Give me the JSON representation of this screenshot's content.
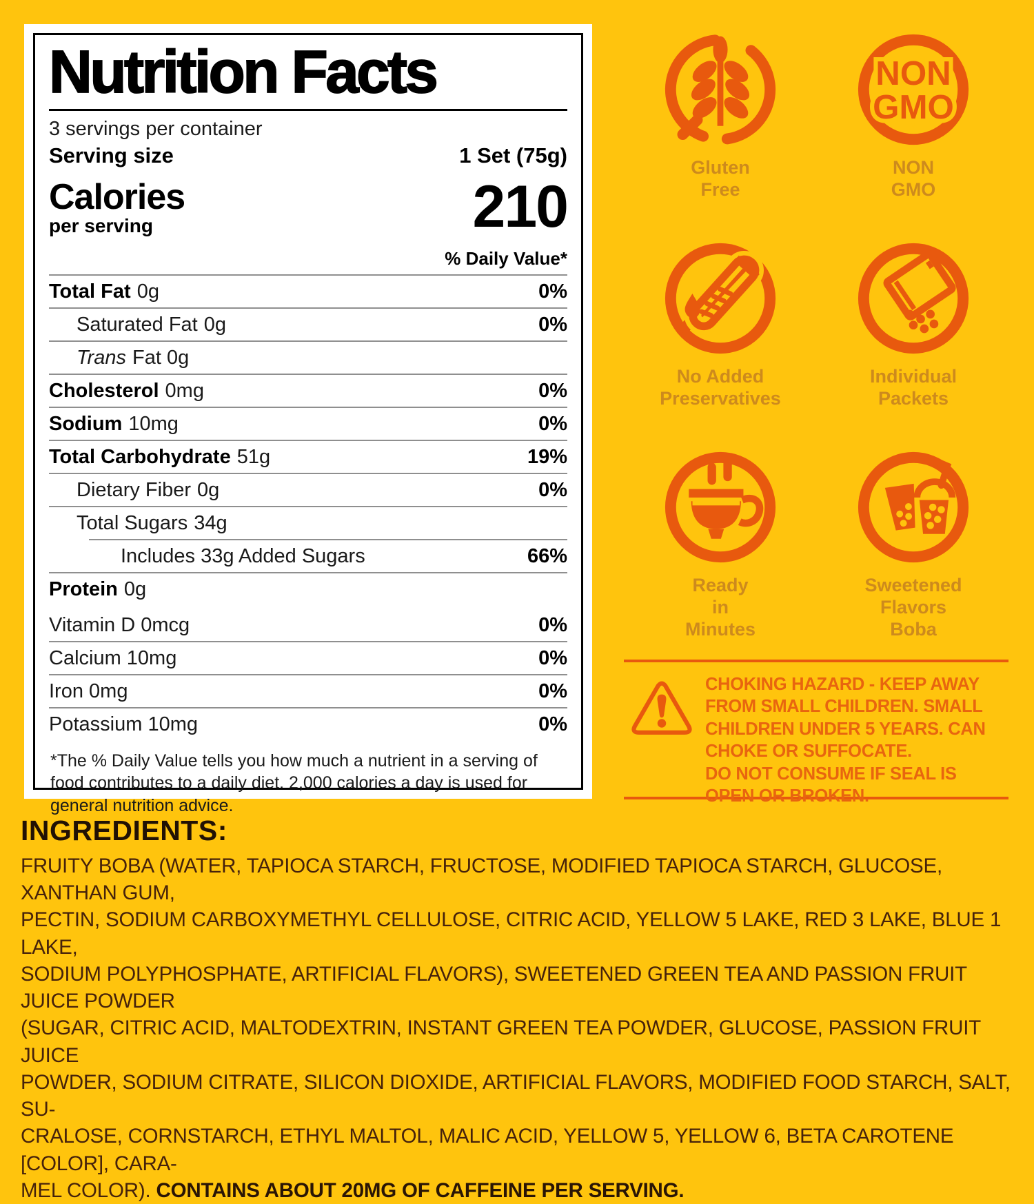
{
  "colors": {
    "background": "#FFC40D",
    "accent_orange": "#E8590E",
    "badge_label": "#CD8A1D",
    "warning_text": "#E8650F",
    "ingredients_text": "#46220B",
    "panel_bg": "#FFFFFF",
    "panel_text": "#000000"
  },
  "nutrition_panel": {
    "title": "Nutrition Facts",
    "servings_per_container": "3 servings per container",
    "serving_size_label": "Serving size",
    "serving_size_value": "1 Set (75g)",
    "calories_label": "Calories",
    "calories_sublabel": "per serving",
    "calories_value": "210",
    "daily_value_header": "% Daily Value*",
    "rows": [
      {
        "label": "Total Fat",
        "amount": "0g",
        "dv": "0%",
        "bold": true,
        "indent": 0
      },
      {
        "label": "Saturated Fat",
        "amount": "0g",
        "dv": "0%",
        "bold": false,
        "indent": 1
      },
      {
        "label": "Trans",
        "italic_label": true,
        "amount": "Fat 0g",
        "dv": "",
        "bold": false,
        "indent": 1
      },
      {
        "label": "Cholesterol",
        "amount": "0mg",
        "dv": "0%",
        "bold": true,
        "indent": 0
      },
      {
        "label": "Sodium",
        "amount": "10mg",
        "dv": "0%",
        "bold": true,
        "indent": 0
      },
      {
        "label": "Total Carbohydrate",
        "amount": "51g",
        "dv": "19%",
        "bold": true,
        "indent": 0
      },
      {
        "label": "Dietary Fiber",
        "amount": "0g",
        "dv": "0%",
        "bold": false,
        "indent": 1
      },
      {
        "label": "Total Sugars",
        "amount": "34g",
        "dv": "",
        "bold": false,
        "indent": 1
      },
      {
        "label": "Includes 33g Added Sugars",
        "amount": "",
        "dv": "66%",
        "bold": false,
        "indent": 2,
        "sub": true
      },
      {
        "label": "Protein",
        "amount": "0g",
        "dv": "",
        "bold": true,
        "indent": 0
      }
    ],
    "vitamin_rows": [
      {
        "label": "Vitamin D 0mcg",
        "dv": "0%"
      },
      {
        "label": "Calcium 10mg",
        "dv": "0%"
      },
      {
        "label": "Iron   0mg",
        "dv": "0%"
      },
      {
        "label": "Potassium 10mg",
        "dv": "0%"
      }
    ],
    "footnote": "*The % Daily Value tells you how much a nutrient in a serving of food contributes to a daily diet. 2,000 calories a day is used for general nutrition advice."
  },
  "badges": [
    {
      "icon": "gluten-free-icon",
      "label": "Gluten\nFree"
    },
    {
      "icon": "non-gmo-icon",
      "label": "NON\nGMO",
      "icon_text_line1": "NON",
      "icon_text_line2": "GMO"
    },
    {
      "icon": "no-added-preservatives-icon",
      "label": "No Added\nPreservatives"
    },
    {
      "icon": "individual-packets-icon",
      "label": "Individual\nPackets"
    },
    {
      "icon": "ready-in-minutes-icon",
      "label": "Ready\nin\nMinutes"
    },
    {
      "icon": "sweetened-flavors-boba-icon",
      "label": "Sweetened\nFlavors\nBoba"
    }
  ],
  "warning": {
    "text": "CHOKING HAZARD - KEEP AWAY FROM SMALL CHILDREN. SMALL CHILDREN UNDER 5 YEARS. CAN CHOKE OR SUFFOCATE.\nDO NOT CONSUME IF SEAL IS OPEN OR BROKEN."
  },
  "ingredients": {
    "heading": "INGREDIENTS:",
    "lines": [
      "FRUITY BOBA (WATER, TAPIOCA STARCH, FRUCTOSE, MODIFIED TAPIOCA STARCH, GLUCOSE, XANTHAN GUM,",
      "PECTIN, SODIUM CARBOXYMETHYL CELLULOSE, CITRIC ACID, YELLOW 5 LAKE, RED 3 LAKE, BLUE 1 LAKE,",
      "SODIUM POLYPHOSPHATE, ARTIFICIAL FLAVORS), SWEETENED GREEN TEA AND PASSION FRUIT JUICE POWDER",
      "(SUGAR, CITRIC ACID, MALTODEXTRIN, INSTANT GREEN TEA POWDER, GLUCOSE, PASSION FRUIT JUICE",
      "POWDER, SODIUM CITRATE, SILICON DIOXIDE, ARTIFICIAL FLAVORS, MODIFIED FOOD STARCH, SALT, SU-",
      "CRALOSE, CORNSTARCH, ETHYL MALTOL, MALIC ACID, YELLOW 5, YELLOW 6, BETA CAROTENE [COLOR], CARA-"
    ],
    "last_line_prefix": "MEL COLOR). ",
    "caffeine_note": "CONTAINS ABOUT 20MG OF CAFFEINE PER SERVING."
  }
}
